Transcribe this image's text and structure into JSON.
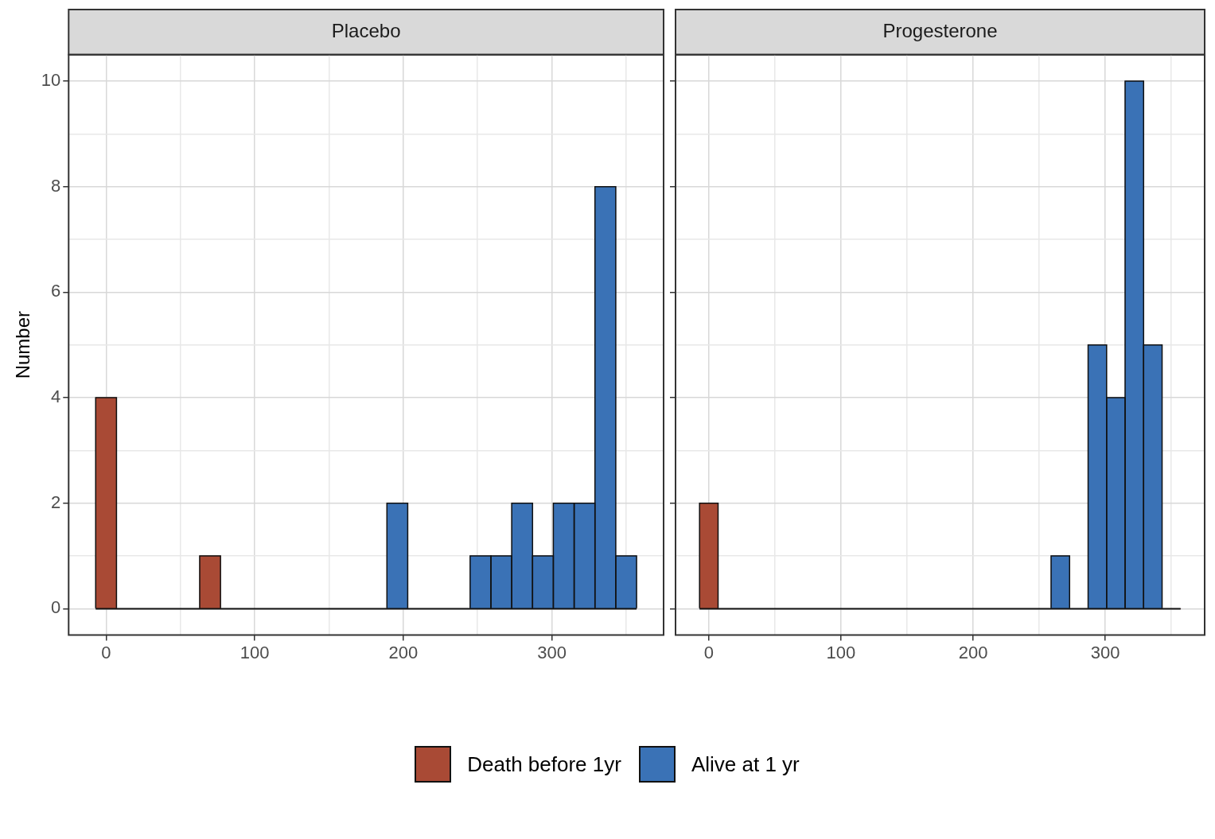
{
  "chart_data": [
    {
      "type": "histogram",
      "title": "Placebo",
      "ylabel": "Number",
      "bins": [
        -7,
        7,
        21,
        35,
        49,
        63,
        77,
        91,
        105,
        119,
        133,
        147,
        161,
        175,
        189,
        203,
        217,
        231,
        245,
        259,
        273,
        287,
        301,
        315,
        329,
        343,
        357
      ],
      "series": [
        {
          "name": "Death before 1yr",
          "color": "#a94a35",
          "values": [
            4,
            0,
            0,
            0,
            0,
            1,
            0,
            0,
            0,
            0,
            0,
            0,
            0,
            0,
            0,
            0,
            0,
            0,
            0,
            0,
            0,
            0,
            0,
            0,
            0,
            0
          ]
        },
        {
          "name": "Alive at 1 yr",
          "color": "#3a72b6",
          "values": [
            0,
            0,
            0,
            0,
            0,
            0,
            0,
            0,
            0,
            0,
            0,
            0,
            0,
            0,
            2,
            0,
            0,
            0,
            1,
            1,
            2,
            1,
            2,
            2,
            8,
            1
          ]
        }
      ],
      "xlim": [
        -25.2,
        375.2
      ],
      "xticks": [
        0,
        {
          "value": 50,
          "label": null
        },
        100,
        {
          "value": 150,
          "label": null
        },
        200,
        {
          "value": 250,
          "label": null
        },
        300,
        {
          "value": 350,
          "label": null
        }
      ],
      "ylim": [
        -0.5,
        10.5
      ],
      "yticks": [
        0,
        {
          "value": 1,
          "label": null
        },
        2,
        {
          "value": 3,
          "label": null
        },
        4,
        {
          "value": 5,
          "label": null
        },
        6,
        {
          "value": 7,
          "label": null
        },
        8,
        {
          "value": 9,
          "label": null
        },
        10
      ],
      "grid": true,
      "legend": "bottom"
    },
    {
      "type": "histogram",
      "title": "Progesterone",
      "bins": [
        -7,
        7,
        21,
        35,
        49,
        63,
        77,
        91,
        105,
        119,
        133,
        147,
        161,
        175,
        189,
        203,
        217,
        231,
        245,
        259,
        273,
        287,
        301,
        315,
        329,
        343,
        357
      ],
      "series": [
        {
          "name": "Death before 1yr",
          "color": "#a94a35",
          "values": [
            2,
            0,
            0,
            0,
            0,
            0,
            0,
            0,
            0,
            0,
            0,
            0,
            0,
            0,
            0,
            0,
            0,
            0,
            0,
            0,
            0,
            0,
            0,
            0,
            0,
            0
          ]
        },
        {
          "name": "Alive at 1 yr",
          "color": "#3a72b6",
          "values": [
            0,
            0,
            0,
            0,
            0,
            0,
            0,
            0,
            0,
            0,
            0,
            0,
            0,
            0,
            0,
            0,
            0,
            0,
            0,
            1,
            0,
            5,
            4,
            10,
            5,
            0
          ]
        }
      ],
      "xlim": [
        -25.2,
        375.2
      ],
      "xticks": [
        0,
        {
          "value": 50,
          "label": null
        },
        100,
        {
          "value": 150,
          "label": null
        },
        200,
        {
          "value": 250,
          "label": null
        },
        300,
        {
          "value": 350,
          "label": null
        }
      ],
      "ylim": [
        -0.5,
        10.5
      ],
      "yticks": [
        0,
        {
          "value": 1,
          "label": null
        },
        2,
        {
          "value": 3,
          "label": null
        },
        4,
        {
          "value": 5,
          "label": null
        },
        6,
        {
          "value": 7,
          "label": null
        },
        8,
        {
          "value": 9,
          "label": null
        },
        10
      ],
      "grid": true,
      "legend": "bottom",
      "tick_labels": "x"
    }
  ]
}
